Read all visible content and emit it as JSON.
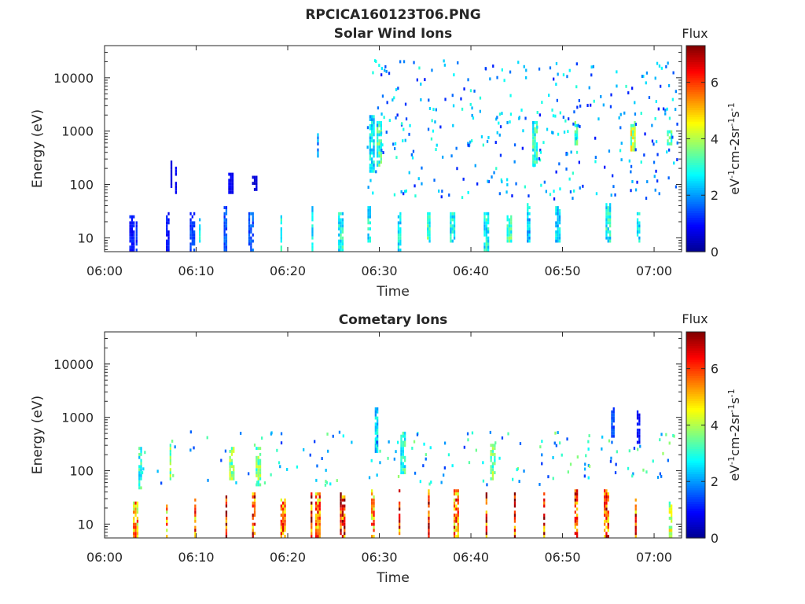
{
  "figure_title": "RPCICA160123T06.PNG",
  "colors": {
    "axis": "#262626",
    "colormap": [
      "#00008f",
      "#0000ff",
      "#0080ff",
      "#00ffff",
      "#80ff80",
      "#ffff00",
      "#ff8000",
      "#ff0000",
      "#800000"
    ]
  },
  "chart_data": [
    {
      "type": "heatmap",
      "title": "Solar Wind Ions",
      "xlabel": "Time",
      "ylabel": "Energy (eV)",
      "xlim": [
        "06:00",
        "07:03"
      ],
      "ylim": [
        5.5,
        40000
      ],
      "yscale": "log",
      "xticks": [
        "06:00",
        "06:10",
        "06:20",
        "06:30",
        "06:40",
        "06:50",
        "07:00"
      ],
      "yticks": [
        10,
        100,
        1000,
        10000
      ],
      "ytick_labels": [
        "10",
        "100",
        "1000",
        "10000"
      ],
      "grid": false,
      "colorbar": {
        "label": "Flux",
        "unit_label": "eV-1cm-2sr-1s-1",
        "range": [
          0,
          7.3
        ],
        "ticks": [
          0,
          2,
          4,
          6
        ],
        "tick_labels": [
          "0",
          "2",
          "4",
          "6"
        ]
      },
      "bursts": [
        {
          "t": 3.0,
          "emin": 5.5,
          "emax": 25,
          "flux": 1.0
        },
        {
          "t": 3.5,
          "emin": 5.5,
          "emax": 18,
          "flux": 1.2
        },
        {
          "t": 6.9,
          "emin": 5.5,
          "emax": 30,
          "flux": 1.0
        },
        {
          "t": 7.3,
          "emin": 80,
          "emax": 250,
          "flux": 0.7
        },
        {
          "t": 7.8,
          "emin": 60,
          "emax": 200,
          "flux": 0.8
        },
        {
          "t": 9.6,
          "emin": 5.5,
          "emax": 30,
          "flux": 1.3
        },
        {
          "t": 10.4,
          "emin": 8,
          "emax": 25,
          "flux": 2.5
        },
        {
          "t": 13.2,
          "emin": 5.5,
          "emax": 35,
          "flux": 1.5
        },
        {
          "t": 13.8,
          "emin": 60,
          "emax": 150,
          "flux": 0.8
        },
        {
          "t": 16.0,
          "emin": 5.5,
          "emax": 30,
          "flux": 1.5
        },
        {
          "t": 16.4,
          "emin": 70,
          "emax": 140,
          "flux": 0.6
        },
        {
          "t": 19.3,
          "emin": 5.5,
          "emax": 25,
          "flux": 2.8
        },
        {
          "t": 22.7,
          "emin": 5.5,
          "emax": 35,
          "flux": 2.5
        },
        {
          "t": 23.3,
          "emin": 300,
          "emax": 900,
          "flux": 2.0
        },
        {
          "t": 25.8,
          "emin": 5.5,
          "emax": 30,
          "flux": 2.8
        },
        {
          "t": 28.9,
          "emin": 8,
          "emax": 35,
          "flux": 2.8
        },
        {
          "t": 29.2,
          "emin": 150,
          "emax": 2000,
          "flux": 2.6
        },
        {
          "t": 30.0,
          "emin": 200,
          "emax": 1500,
          "flux": 3.2
        },
        {
          "t": 32.2,
          "emin": 5.5,
          "emax": 30,
          "flux": 2.6
        },
        {
          "t": 35.4,
          "emin": 8,
          "emax": 30,
          "flux": 3.2
        },
        {
          "t": 38.0,
          "emin": 8,
          "emax": 30,
          "flux": 2.8
        },
        {
          "t": 41.7,
          "emin": 5.5,
          "emax": 30,
          "flux": 2.8
        },
        {
          "t": 44.2,
          "emin": 8,
          "emax": 25,
          "flux": 3.2
        },
        {
          "t": 46.3,
          "emin": 8,
          "emax": 40,
          "flux": 2.4
        },
        {
          "t": 47.0,
          "emin": 200,
          "emax": 1500,
          "flux": 3.0
        },
        {
          "t": 49.5,
          "emin": 8,
          "emax": 35,
          "flux": 2.5
        },
        {
          "t": 51.5,
          "emin": 500,
          "emax": 1500,
          "flux": 3.2
        },
        {
          "t": 55.0,
          "emin": 8,
          "emax": 40,
          "flux": 2.8
        },
        {
          "t": 57.7,
          "emin": 400,
          "emax": 1500,
          "flux": 4.0
        },
        {
          "t": 58.3,
          "emin": 8,
          "emax": 30,
          "flux": 2.6
        },
        {
          "t": 61.7,
          "emin": 500,
          "emax": 1000,
          "flux": 3.2
        }
      ],
      "scatter": {
        "tmin": 28.5,
        "tmax": 63.0,
        "emin": 50,
        "emax": 20000,
        "flux": 2.6
      }
    },
    {
      "type": "heatmap",
      "title": "Cometary Ions",
      "xlabel": "Time",
      "ylabel": "Energy (eV)",
      "xlim": [
        "06:00",
        "07:03"
      ],
      "ylim": [
        5.5,
        40000
      ],
      "yscale": "log",
      "xticks": [
        "06:00",
        "06:10",
        "06:20",
        "06:30",
        "06:40",
        "06:50",
        "07:00"
      ],
      "yticks": [
        10,
        100,
        1000,
        10000
      ],
      "ytick_labels": [
        "10",
        "100",
        "1000",
        "10000"
      ],
      "grid": false,
      "colorbar": {
        "label": "Flux",
        "unit_label": "eV-1cm-2sr-1s-1",
        "range": [
          0,
          7.3
        ],
        "ticks": [
          0,
          2,
          4,
          6
        ],
        "tick_labels": [
          "0",
          "2",
          "4",
          "6"
        ]
      },
      "bursts": [
        {
          "t": 3.4,
          "emin": 5.5,
          "emax": 25,
          "flux": 5.0
        },
        {
          "t": 3.9,
          "emin": 40,
          "emax": 250,
          "flux": 3.0
        },
        {
          "t": 6.8,
          "emin": 5.5,
          "emax": 25,
          "flux": 5.0
        },
        {
          "t": 7.2,
          "emin": 60,
          "emax": 300,
          "flux": 3.5
        },
        {
          "t": 9.9,
          "emin": 5.5,
          "emax": 30,
          "flux": 5.5
        },
        {
          "t": 13.3,
          "emin": 5.5,
          "emax": 35,
          "flux": 6.3
        },
        {
          "t": 13.9,
          "emin": 60,
          "emax": 250,
          "flux": 3.6
        },
        {
          "t": 16.3,
          "emin": 5.5,
          "emax": 35,
          "flux": 5.8
        },
        {
          "t": 16.8,
          "emin": 50,
          "emax": 250,
          "flux": 3.5
        },
        {
          "t": 19.5,
          "emin": 5.5,
          "emax": 30,
          "flux": 5.5
        },
        {
          "t": 22.6,
          "emin": 5.5,
          "emax": 40,
          "flux": 6.0
        },
        {
          "t": 23.3,
          "emin": 5.5,
          "emax": 35,
          "flux": 5.5
        },
        {
          "t": 26.0,
          "emin": 5.5,
          "emax": 35,
          "flux": 6.2
        },
        {
          "t": 29.3,
          "emin": 5.5,
          "emax": 40,
          "flux": 5.3
        },
        {
          "t": 29.7,
          "emin": 200,
          "emax": 1500,
          "flux": 2.5
        },
        {
          "t": 32.2,
          "emin": 5.5,
          "emax": 40,
          "flux": 6.0
        },
        {
          "t": 32.6,
          "emin": 80,
          "emax": 500,
          "flux": 3.0
        },
        {
          "t": 35.4,
          "emin": 5.5,
          "emax": 40,
          "flux": 6.3
        },
        {
          "t": 38.4,
          "emin": 5.5,
          "emax": 40,
          "flux": 5.5
        },
        {
          "t": 41.7,
          "emin": 5.5,
          "emax": 40,
          "flux": 6.0
        },
        {
          "t": 42.4,
          "emin": 60,
          "emax": 300,
          "flux": 3.5
        },
        {
          "t": 44.8,
          "emin": 5.5,
          "emax": 40,
          "flux": 6.5
        },
        {
          "t": 48.0,
          "emin": 5.5,
          "emax": 40,
          "flux": 6.0
        },
        {
          "t": 51.5,
          "emin": 5.5,
          "emax": 40,
          "flux": 6.0
        },
        {
          "t": 54.8,
          "emin": 5.5,
          "emax": 40,
          "flux": 5.8
        },
        {
          "t": 55.5,
          "emin": 300,
          "emax": 1500,
          "flux": 1.5
        },
        {
          "t": 58.0,
          "emin": 5.5,
          "emax": 40,
          "flux": 5.8
        },
        {
          "t": 58.3,
          "emin": 300,
          "emax": 1200,
          "flux": 1.0
        },
        {
          "t": 61.8,
          "emin": 5.5,
          "emax": 25,
          "flux": 4.0
        }
      ],
      "scatter": {
        "tmin": 4.0,
        "tmax": 62.5,
        "emin": 50,
        "emax": 500,
        "flux": 3.2
      }
    }
  ]
}
